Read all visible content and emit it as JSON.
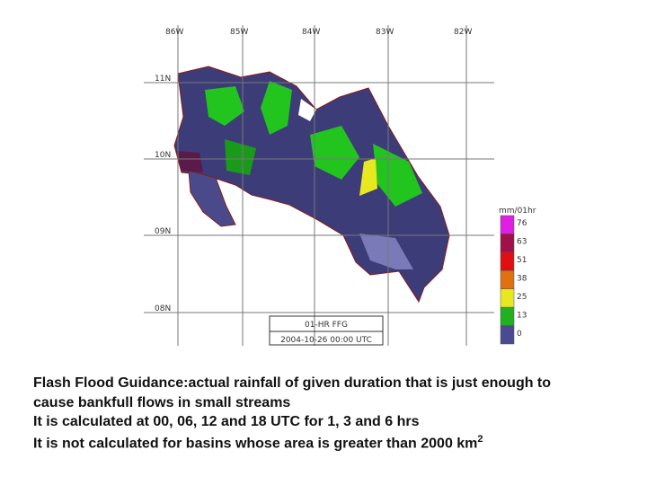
{
  "map": {
    "lon_labels": [
      "86W",
      "85W",
      "84W",
      "83W",
      "82W"
    ],
    "lat_labels": [
      "11N",
      "10N",
      "09N",
      "08N"
    ],
    "legend": {
      "unit": "mm/01hr",
      "labels": [
        "76",
        "63",
        "51",
        "38",
        "25",
        "13",
        "0"
      ]
    },
    "product": "01-HR FFG",
    "date": "2004-10-26 00:00 UTC"
  },
  "caption": {
    "lines": [
      "Flash Flood Guidance:actual rainfall of given duration that is just enough to",
      "cause bankfull flows in small streams",
      "It is calculated at 00, 06, 12 and 18 UTC for 1, 3 and 6 hrs",
      "It is not calculated for basins whose area is greater than 2000 km"
    ],
    "superscript": "2"
  }
}
